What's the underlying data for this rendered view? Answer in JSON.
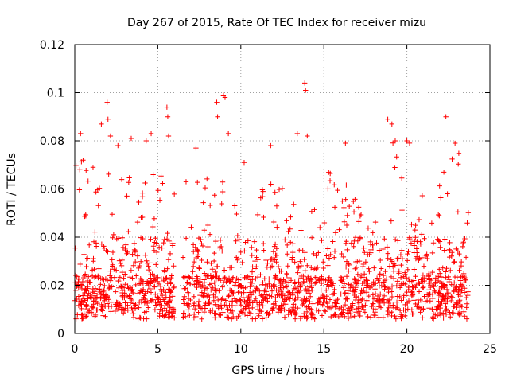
{
  "chart_data": {
    "type": "scatter",
    "title": "Day 267 of 2015, Rate Of TEC Index for receiver mizu",
    "xlabel": "GPS time / hours",
    "ylabel": "ROTI / TECUs",
    "xlim": [
      0,
      25
    ],
    "ylim": [
      0,
      0.12
    ],
    "x_ticks": [
      0,
      5,
      10,
      15,
      20,
      25
    ],
    "y_ticks": [
      0,
      0.02,
      0.04,
      0.06,
      0.08,
      0.1,
      0.12
    ],
    "x_tick_labels": [
      "0",
      "5",
      "10",
      "15",
      "20",
      "25"
    ],
    "y_tick_labels": [
      "0",
      "0.02",
      "0.04",
      "0.06",
      "0.08",
      "0.1",
      "0.12"
    ],
    "grid": true,
    "marker": "plus",
    "color": "#ff0000",
    "data_gaps_hours": [
      [
        6.0,
        6.5
      ]
    ],
    "data_range_hours": [
      0,
      23.7
    ],
    "series": [
      {
        "points": [
          [
            0.3,
            0.068
          ],
          [
            0.35,
            0.083
          ],
          [
            0.5,
            0.072
          ],
          [
            1.1,
            0.069
          ],
          [
            1.6,
            0.087
          ],
          [
            1.95,
            0.096
          ],
          [
            2.0,
            0.089
          ],
          [
            2.15,
            0.082
          ],
          [
            2.6,
            0.078
          ],
          [
            3.4,
            0.081
          ],
          [
            4.3,
            0.08
          ],
          [
            4.6,
            0.083
          ],
          [
            5.55,
            0.094
          ],
          [
            5.6,
            0.09
          ],
          [
            5.65,
            0.082
          ],
          [
            7.3,
            0.077
          ],
          [
            8.55,
            0.096
          ],
          [
            8.6,
            0.09
          ],
          [
            8.95,
            0.099
          ],
          [
            9.05,
            0.098
          ],
          [
            9.25,
            0.083
          ],
          [
            10.2,
            0.071
          ],
          [
            11.8,
            0.078
          ],
          [
            13.4,
            0.083
          ],
          [
            13.85,
            0.104
          ],
          [
            13.9,
            0.101
          ],
          [
            14.0,
            0.082
          ],
          [
            16.3,
            0.079
          ],
          [
            18.85,
            0.089
          ],
          [
            19.1,
            0.087
          ],
          [
            19.3,
            0.08
          ],
          [
            20.0,
            0.08
          ],
          [
            22.35,
            0.09
          ],
          [
            22.9,
            0.079
          ]
        ]
      }
    ]
  }
}
